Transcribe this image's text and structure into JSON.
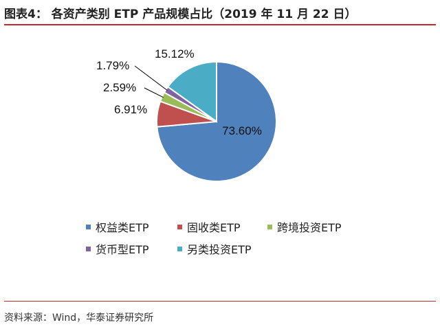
{
  "title": "图表4： 各资产类别 ETP 产品规模占比（2019 年 11 月 22 日）",
  "source": "资料来源：Wind，华泰证券研究所",
  "chart_data": {
    "type": "pie",
    "categories": [
      "权益类ETP",
      "固收类ETP",
      "跨境投资ETP",
      "货币型ETP",
      "另类投资ETP"
    ],
    "values": [
      73.6,
      6.91,
      2.59,
      1.79,
      15.12
    ],
    "value_labels": [
      "73.60%",
      "6.91%",
      "2.59%",
      "1.79%",
      "15.12%"
    ],
    "colors": [
      "#4f81bd",
      "#c0504d",
      "#9bbb59",
      "#8064a2",
      "#4bacc6"
    ],
    "legend_position": "bottom"
  }
}
